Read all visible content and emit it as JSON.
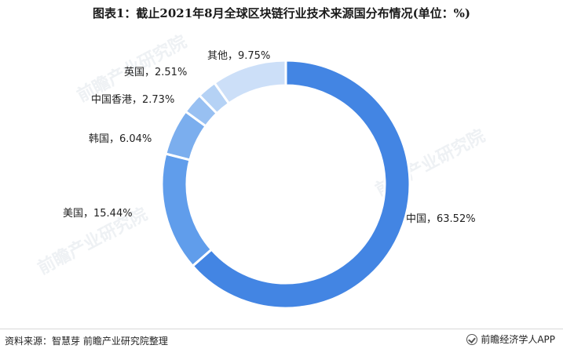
{
  "title": "图表1：截止2021年8月全球区块链行业技术来源国分布情况(单位：%)",
  "chart_data": {
    "type": "pie",
    "donut": true,
    "unit": "%",
    "categories": [
      "中国",
      "美国",
      "韩国",
      "中国香港",
      "英国",
      "其他"
    ],
    "values": [
      63.52,
      15.44,
      6.04,
      2.73,
      2.51,
      9.75
    ],
    "data_labels": [
      "中国，63.52%",
      "美国，15.44%",
      "韩国，6.04%",
      "中国香港，2.73%",
      "英国，2.51%",
      "其他，9.75%"
    ],
    "colors": [
      "#4385E3",
      "#609DEB",
      "#7BAEEE",
      "#98C0F2",
      "#B5D2F5",
      "#CCDFF8"
    ]
  },
  "footer": {
    "source": "资料来源：智慧芽 前瞻产业研究院整理",
    "brand": "前瞻经济学人APP"
  },
  "watermark": "前瞻产业研究院"
}
